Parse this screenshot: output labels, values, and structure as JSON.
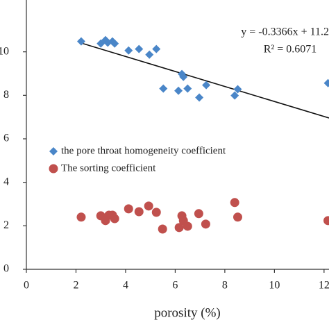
{
  "chart_data": {
    "type": "scatter",
    "x_label": "porosity (%)",
    "annotations": [
      "y = -0.3366x + 11.2",
      "R² = 0.6071"
    ],
    "xlim": [
      0,
      12.2
    ],
    "xticks": [
      0,
      2,
      4,
      6,
      8,
      10,
      12
    ],
    "ylim": [
      0,
      12
    ],
    "yticks": [
      0,
      2,
      4,
      6,
      8,
      10
    ],
    "legend": "left",
    "series": [
      {
        "name": "the pore throat homogeneity coefficient",
        "color": "#4a86c8",
        "marker": "diamond",
        "x": [
          2.21,
          3.0,
          3.19,
          3.28,
          3.47,
          3.56,
          4.12,
          4.54,
          4.96,
          5.24,
          6.27,
          6.33,
          5.52,
          6.13,
          6.5,
          6.97,
          7.25,
          8.4,
          8.52,
          12.16
        ],
        "values": [
          10.48,
          10.38,
          10.54,
          10.42,
          10.48,
          10.38,
          10.06,
          10.13,
          9.87,
          10.13,
          8.98,
          8.85,
          8.31,
          8.21,
          8.31,
          7.9,
          8.47,
          7.99,
          8.28,
          8.56
        ]
      },
      {
        "name": "The sorting coefficient",
        "color": "#c0504d",
        "marker": "circle",
        "x": [
          2.21,
          3.0,
          3.19,
          3.33,
          3.47,
          3.56,
          4.12,
          4.54,
          4.93,
          5.24,
          5.49,
          6.16,
          6.27,
          6.33,
          6.5,
          6.95,
          7.23,
          8.4,
          8.52,
          12.16
        ],
        "values": [
          2.4,
          2.46,
          2.24,
          2.49,
          2.49,
          2.33,
          2.78,
          2.65,
          2.91,
          2.62,
          1.85,
          1.92,
          2.46,
          2.24,
          1.98,
          2.56,
          2.08,
          3.07,
          2.4,
          2.24
        ]
      }
    ]
  }
}
